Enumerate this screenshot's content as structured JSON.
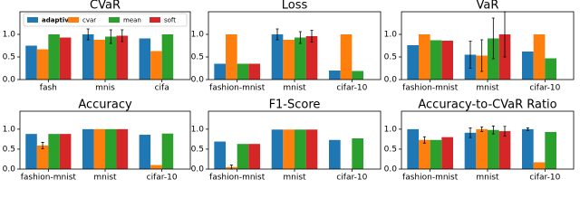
{
  "chart_data": [
    {
      "type": "bar",
      "title": "CVaR",
      "categories": [
        "fash",
        "mnis",
        "cifa"
      ],
      "legend": "upper center",
      "series": [
        {
          "name": "adaptive",
          "color": "#1f77b4",
          "values": [
            0.75,
            1.0,
            0.91
          ],
          "errors": [
            null,
            0.12,
            null
          ]
        },
        {
          "name": "cvar",
          "color": "#ff7f0e",
          "values": [
            0.67,
            0.88,
            0.63
          ],
          "errors": [
            null,
            null,
            null
          ]
        },
        {
          "name": "mean",
          "color": "#2ca02c",
          "values": [
            1.0,
            0.95,
            1.0
          ],
          "errors": [
            null,
            0.15,
            null
          ]
        },
        {
          "name": "soft",
          "color": "#d62728",
          "values": [
            0.93,
            0.97,
            null
          ],
          "errors": [
            null,
            0.13,
            null
          ]
        }
      ],
      "ylim": [
        0,
        1.5
      ],
      "yticks": [
        {
          "value": 0,
          "label": "0.0"
        },
        {
          "value": 0.5,
          "label": "0.5"
        },
        {
          "value": 1,
          "label": "1.0"
        }
      ]
    },
    {
      "type": "bar",
      "title": "Loss",
      "categories": [
        "fashion-mnist",
        "mnist",
        "cifar-10"
      ],
      "series": [
        {
          "color": "#1f77b4",
          "values": [
            0.35,
            1.0,
            0.2
          ],
          "errors": [
            null,
            0.12,
            null
          ]
        },
        {
          "color": "#ff7f0e",
          "values": [
            1.0,
            0.88,
            1.0
          ],
          "errors": [
            null,
            null,
            null
          ]
        },
        {
          "color": "#2ca02c",
          "values": [
            0.35,
            0.93,
            0.19
          ],
          "errors": [
            null,
            0.13,
            null
          ]
        },
        {
          "color": "#d62728",
          "values": [
            0.35,
            0.96,
            null
          ],
          "errors": [
            null,
            0.13,
            null
          ]
        }
      ],
      "ylim": [
        0,
        1.5
      ],
      "yticks": [
        {
          "value": 0,
          "label": "0.0"
        },
        {
          "value": 0.5,
          "label": "0.5"
        },
        {
          "value": 1,
          "label": "1.0"
        }
      ]
    },
    {
      "type": "bar",
      "title": "VaR",
      "categories": [
        "fashion-mnist",
        "mnist",
        "cifar-10"
      ],
      "series": [
        {
          "color": "#1f77b4",
          "values": [
            0.76,
            0.55,
            0.62
          ],
          "errors": [
            null,
            0.3,
            null
          ]
        },
        {
          "color": "#ff7f0e",
          "values": [
            1.0,
            0.53,
            1.0
          ],
          "errors": [
            null,
            0.35,
            null
          ]
        },
        {
          "color": "#2ca02c",
          "values": [
            0.87,
            0.91,
            0.47
          ],
          "errors": [
            null,
            0.45,
            null
          ]
        },
        {
          "color": "#d62728",
          "values": [
            0.86,
            1.0,
            null
          ],
          "errors": [
            null,
            0.5,
            null
          ]
        }
      ],
      "ylim": [
        0,
        1.5
      ],
      "yticks": [
        {
          "value": 0,
          "label": "0.0"
        },
        {
          "value": 0.5,
          "label": "0.5"
        },
        {
          "value": 1,
          "label": "1.0"
        }
      ]
    },
    {
      "type": "bar",
      "title": "Accuracy",
      "categories": [
        "fashion-mnist",
        "mnist",
        "cifar-10"
      ],
      "series": [
        {
          "color": "#1f77b4",
          "values": [
            0.88,
            1.0,
            0.86
          ],
          "errors": [
            null,
            null,
            null
          ]
        },
        {
          "color": "#ff7f0e",
          "values": [
            0.59,
            1.0,
            0.1
          ],
          "errors": [
            0.08,
            null,
            null
          ]
        },
        {
          "color": "#2ca02c",
          "values": [
            0.88,
            1.0,
            0.89
          ],
          "errors": [
            null,
            null,
            null
          ]
        },
        {
          "color": "#d62728",
          "values": [
            0.88,
            1.0,
            null
          ],
          "errors": [
            null,
            null,
            null
          ]
        }
      ],
      "ylim": [
        0,
        1.45
      ],
      "yticks": [
        {
          "value": 0,
          "label": "0.0"
        },
        {
          "value": 0.5,
          "label": "0.5"
        },
        {
          "value": 1,
          "label": "1.0"
        }
      ]
    },
    {
      "type": "bar",
      "title": "F1-Score",
      "categories": [
        "fashion-mnist",
        "mnist",
        "cifar-10"
      ],
      "series": [
        {
          "color": "#1f77b4",
          "values": [
            0.69,
            0.99,
            0.73
          ],
          "errors": [
            null,
            null,
            null
          ]
        },
        {
          "color": "#ff7f0e",
          "values": [
            0.05,
            0.99,
            null
          ],
          "errors": [
            0.05,
            null,
            null
          ]
        },
        {
          "color": "#2ca02c",
          "values": [
            0.63,
            0.99,
            0.77
          ],
          "errors": [
            null,
            null,
            null
          ]
        },
        {
          "color": "#d62728",
          "values": [
            0.63,
            0.99,
            null
          ],
          "errors": [
            null,
            null,
            null
          ]
        }
      ],
      "ylim": [
        0,
        1.45
      ],
      "yticks": [
        {
          "value": 0,
          "label": "0.0"
        },
        {
          "value": 0.5,
          "label": "0.5"
        },
        {
          "value": 1,
          "label": "1.0"
        }
      ]
    },
    {
      "type": "bar",
      "title": "Accuracy-to-CVaR Ratio",
      "categories": [
        "fashion-mnist",
        "mnist",
        "cifar-10"
      ],
      "series": [
        {
          "color": "#1f77b4",
          "values": [
            1.0,
            0.91,
            1.0
          ],
          "errors": [
            null,
            0.12,
            0.03
          ]
        },
        {
          "color": "#ff7f0e",
          "values": [
            0.73,
            1.0,
            0.17
          ],
          "errors": [
            0.08,
            0.06,
            null
          ]
        },
        {
          "color": "#2ca02c",
          "values": [
            0.73,
            0.98,
            0.93
          ],
          "errors": [
            null,
            0.1,
            null
          ]
        },
        {
          "color": "#d62728",
          "values": [
            0.8,
            0.95,
            null
          ],
          "errors": [
            null,
            0.12,
            null
          ]
        }
      ],
      "ylim": [
        0,
        1.45
      ],
      "yticks": [
        {
          "value": 0,
          "label": "0.0"
        },
        {
          "value": 0.5,
          "label": "0.5"
        },
        {
          "value": 1,
          "label": "1.0"
        }
      ]
    }
  ]
}
